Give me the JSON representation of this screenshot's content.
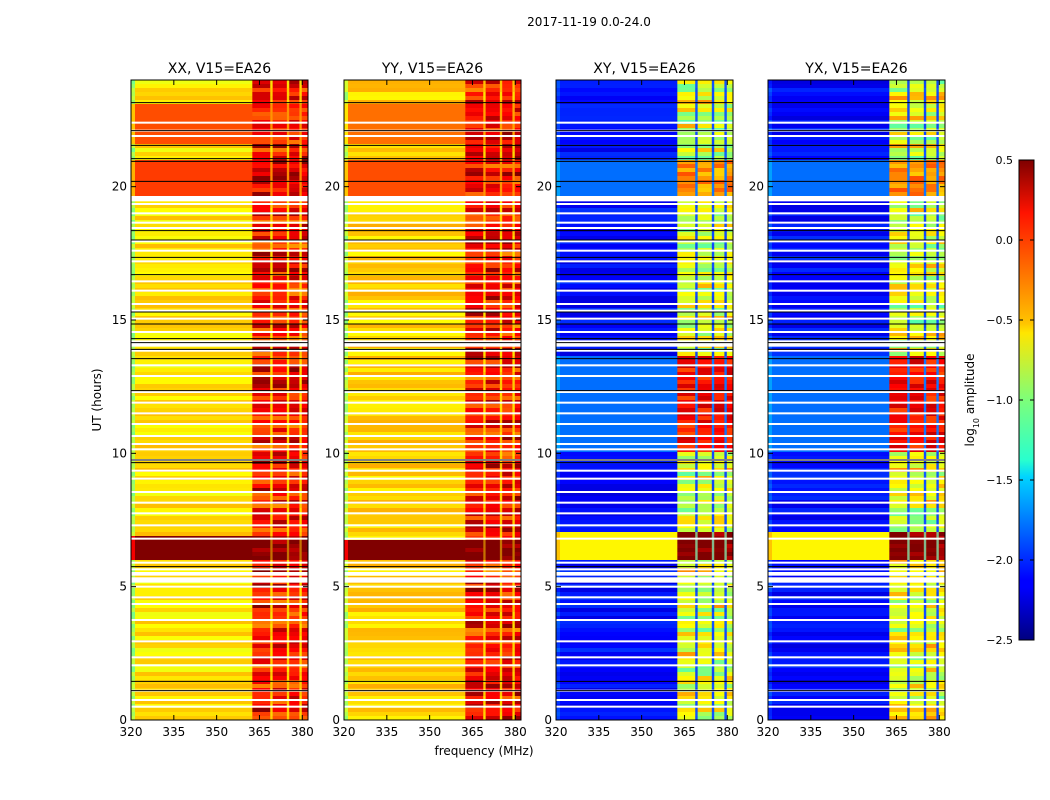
{
  "chart_data": {
    "type": "heatmap",
    "suptitle": "2017-11-19 0.0-24.0",
    "xlabel": "frequency (MHz)",
    "ylabel": "UT (hours)",
    "xlim": [
      320,
      382
    ],
    "ylim": [
      0,
      24
    ],
    "xticks": [
      320,
      335,
      350,
      365,
      380
    ],
    "xtick_labels": [
      "320",
      "335",
      "350",
      "365",
      "380"
    ],
    "yticks": [
      0,
      5,
      10,
      15,
      20
    ],
    "ytick_labels": [
      "0",
      "5",
      "10",
      "15",
      "20"
    ],
    "grid": false,
    "colorbar": {
      "label": "log10 amplitude",
      "label_main": "log",
      "label_sub": "10",
      "label_rest": " amplitude",
      "range": [
        -2.5,
        0.5
      ],
      "ticks": [
        0.5,
        0.0,
        -0.5,
        -1.0,
        -1.5,
        -2.0,
        -2.5
      ],
      "tick_labels": [
        "0.5",
        "0.0",
        "−0.5",
        "−1.0",
        "−1.5",
        "−2.0",
        "−2.5"
      ],
      "colormap": "jet",
      "placement": "right"
    },
    "rfi_bands_mhz": [
      [
        362.5,
        368.8
      ],
      [
        369.6,
        374.6
      ],
      [
        375.4,
        379.0
      ],
      [
        379.8,
        383.0
      ]
    ],
    "flagged_rows_hours": [
      0.5,
      0.75,
      1.1,
      2.05,
      2.35,
      2.95,
      3.75,
      4.35,
      4.6,
      5.0,
      5.25,
      5.45,
      5.65,
      5.9,
      6.8,
      7.3,
      7.75,
      8.15,
      8.55,
      9.05,
      9.35,
      9.75,
      10.15,
      10.35,
      10.65,
      11.1,
      11.5,
      11.9,
      12.3,
      12.9,
      13.3,
      13.85,
      14.2,
      14.55,
      15.05,
      15.35,
      15.6,
      16.1,
      16.45,
      17.2,
      17.6,
      17.95,
      18.45,
      18.65,
      19.0,
      19.35,
      19.6,
      22.1,
      22.4,
      21.9
    ],
    "boundary_rows_hours": [
      1.1,
      1.45,
      5.75,
      9.75,
      9.65,
      12.35,
      13.55,
      13.9,
      14.15,
      14.3,
      14.85,
      15.3,
      16.7,
      17.35,
      18.0,
      18.35,
      20.2,
      20.95,
      21.05,
      21.55,
      22.1,
      23.15
    ],
    "panels": [
      {
        "title": "XX, V15=EA26",
        "background_log_amp": -0.55,
        "rfi_log_amp": 0.1,
        "bright_intervals": [
          {
            "from_hr": 6.0,
            "to_hr": 6.95,
            "log_amp": 0.5
          },
          {
            "from_hr": 19.65,
            "to_hr": 21.05,
            "log_amp": -0.05
          },
          {
            "from_hr": 21.55,
            "to_hr": 23.15,
            "log_amp": -0.1
          }
        ]
      },
      {
        "title": "YY, V15=EA26",
        "background_log_amp": -0.5,
        "rfi_log_amp": 0.1,
        "bright_intervals": [
          {
            "from_hr": 6.0,
            "to_hr": 6.75,
            "log_amp": 0.5
          },
          {
            "from_hr": 19.65,
            "to_hr": 21.05,
            "log_amp": -0.1
          },
          {
            "from_hr": 21.55,
            "to_hr": 23.15,
            "log_amp": -0.2
          }
        ]
      },
      {
        "title": "XY, V15=EA26",
        "background_log_amp": -2.1,
        "rfi_log_amp": -0.7,
        "bright_intervals": [
          {
            "from_hr": 6.0,
            "to_hr": 7.0,
            "log_amp": 0.5
          },
          {
            "from_hr": 10.0,
            "to_hr": 13.6,
            "log_amp": 0.1
          },
          {
            "from_hr": 19.65,
            "to_hr": 21.05,
            "log_amp": -0.3
          }
        ]
      },
      {
        "title": "YX, V15=EA26",
        "background_log_amp": -2.1,
        "rfi_log_amp": -0.7,
        "bright_intervals": [
          {
            "from_hr": 6.0,
            "to_hr": 7.0,
            "log_amp": 0.5
          },
          {
            "from_hr": 10.0,
            "to_hr": 13.6,
            "log_amp": 0.1
          },
          {
            "from_hr": 19.65,
            "to_hr": 21.05,
            "log_amp": -0.3
          }
        ]
      }
    ]
  }
}
